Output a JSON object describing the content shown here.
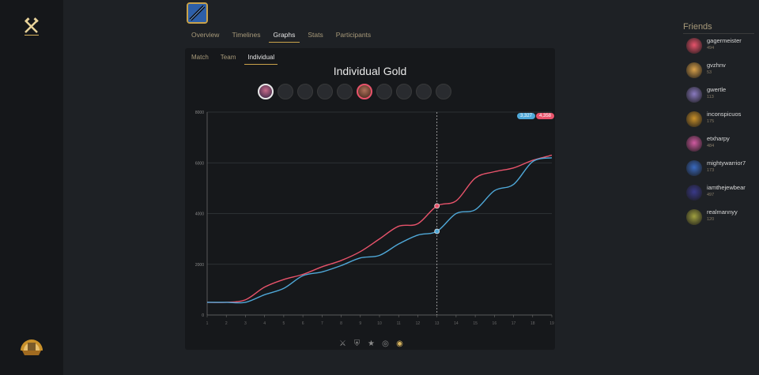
{
  "nav": {
    "tabs": [
      "Overview",
      "Timelines",
      "Graphs",
      "Stats",
      "Participants"
    ],
    "active_tab": "Graphs"
  },
  "panel": {
    "sub_tabs": [
      "Match",
      "Team",
      "Individual"
    ],
    "active_sub_tab": "Individual",
    "title": "Individual Gold",
    "bottom_icons": [
      "crossed-swords-icon",
      "shield-icon",
      "star-icon",
      "target-icon",
      "gold-coin-icon"
    ],
    "active_bottom_icon": "gold-coin-icon"
  },
  "legend": {
    "blue_value": "3,327",
    "red_value": "4,358"
  },
  "chart_data": {
    "type": "line",
    "title": "Individual Gold",
    "x": [
      1,
      2,
      3,
      4,
      5,
      6,
      7,
      8,
      9,
      10,
      11,
      12,
      13,
      14,
      15,
      16,
      17,
      18,
      19
    ],
    "ylim": [
      0,
      8000
    ],
    "xlim": [
      1,
      19
    ],
    "yticks": [
      0,
      2000,
      4000,
      6000,
      8000
    ],
    "grid": true,
    "hover_x": 13,
    "series": [
      {
        "color": "#e8536b",
        "values": [
          500,
          500,
          600,
          1100,
          1400,
          1600,
          1900,
          2150,
          2500,
          3000,
          3500,
          3600,
          4300,
          4500,
          5400,
          5650,
          5800,
          6100,
          6300
        ]
      },
      {
        "color": "#4fa8d8",
        "values": [
          500,
          500,
          500,
          800,
          1050,
          1550,
          1700,
          1950,
          2250,
          2350,
          2800,
          3150,
          3300,
          4000,
          4150,
          4900,
          5150,
          6050,
          6200
        ]
      }
    ]
  },
  "friends": {
    "title": "Friends",
    "list": [
      {
        "name": "gagermeister",
        "level": "494",
        "color": "#e8536b"
      },
      {
        "name": "gvzhnv",
        "level": "53",
        "color": "#d8a04a"
      },
      {
        "name": "gwertle",
        "level": "113",
        "color": "#8a7ac0"
      },
      {
        "name": "inconspicuos",
        "level": "175",
        "color": "#c9902a"
      },
      {
        "name": "etxharpy",
        "level": "484",
        "color": "#d05aa0"
      },
      {
        "name": "mightywarrior7",
        "level": "173",
        "color": "#3a6ac0"
      },
      {
        "name": "iamthejewbear",
        "level": "497",
        "color": "#3a3a8a"
      },
      {
        "name": "realmannyy",
        "level": "120",
        "color": "#a0a040"
      }
    ]
  }
}
